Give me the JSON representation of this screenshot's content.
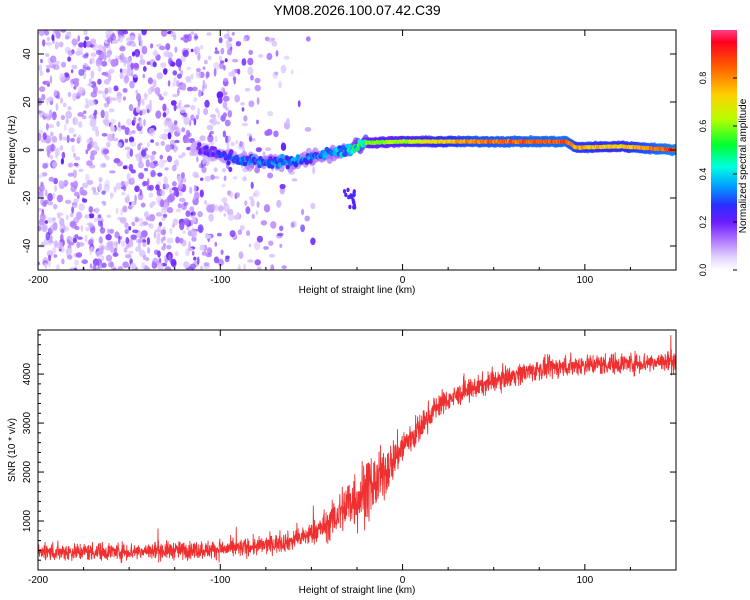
{
  "figure": {
    "title": "YM08.2026.100.07.42.C39"
  },
  "chart_data": [
    {
      "type": "heatmap",
      "title": "YM08.2026.100.07.42.C39",
      "xlabel": "Height of straight line (km)",
      "ylabel": "Frequency (Hz)",
      "xlim": [
        -200,
        150
      ],
      "ylim": [
        -50,
        50
      ],
      "xticks": [
        -200,
        -100,
        0,
        100
      ],
      "xtick_labels": [
        "-200",
        "-100",
        "0",
        "100"
      ],
      "yticks": [
        40,
        20,
        0,
        -20,
        -40
      ],
      "ytick_labels": [
        "40",
        "20",
        "0",
        "-20",
        "-40"
      ],
      "colorbar": {
        "label": "Normalized spectral amplitude",
        "range": [
          0,
          1
        ],
        "ticks": [
          0.0,
          0.2,
          0.4,
          0.6,
          0.8
        ],
        "tick_labels": [
          "0.0",
          "0.2",
          "0.4",
          "0.6",
          "0.8"
        ],
        "colors": [
          "#ffffff",
          "#d7c3ff",
          "#8a2be2",
          "#3b2dff",
          "#00e5ff",
          "#00ff40",
          "#b8ff00",
          "#ffd000",
          "#ff6a00",
          "#ff0030"
        ]
      },
      "features": {
        "noise_region_x": [
          -200,
          -45
        ],
        "noise_density_falloff_x": -110,
        "dominant_line": [
          {
            "x": -112,
            "freq": 0.5,
            "amplitude": 0.25
          },
          {
            "x": -95,
            "freq": -3,
            "amplitude": 0.3
          },
          {
            "x": -80,
            "freq": -5,
            "amplitude": 0.35
          },
          {
            "x": -60,
            "freq": -5,
            "amplitude": 0.35
          },
          {
            "x": -45,
            "freq": -2,
            "amplitude": 0.35
          },
          {
            "x": -30,
            "freq": 0,
            "amplitude": 0.45
          },
          {
            "x": -20,
            "freq": 3,
            "amplitude": 0.6
          },
          {
            "x": 0,
            "freq": 3.5,
            "amplitude": 0.65
          },
          {
            "x": 40,
            "freq": 3.5,
            "amplitude": 0.85
          },
          {
            "x": 90,
            "freq": 3.5,
            "amplitude": 0.9
          },
          {
            "x": 95,
            "freq": 1,
            "amplitude": 0.8
          },
          {
            "x": 120,
            "freq": 1.5,
            "amplitude": 0.75
          },
          {
            "x": 150,
            "freq": 0,
            "amplitude": 0.95
          }
        ]
      }
    },
    {
      "type": "line",
      "xlabel": "Height of straight line (km)",
      "ylabel": "SNR (10 * v/v)",
      "xlim": [
        -200,
        150
      ],
      "ylim": [
        0,
        4900
      ],
      "xticks": [
        -200,
        -100,
        0,
        100
      ],
      "xtick_labels": [
        "-200",
        "-100",
        "0",
        "100"
      ],
      "yticks": [
        1000,
        2000,
        3000,
        4000
      ],
      "ytick_labels": [
        "1000",
        "2000",
        "3000",
        "4000"
      ],
      "color": "#f03030",
      "series": [
        {
          "name": "SNR",
          "x": [
            -200,
            -150,
            -100,
            -80,
            -60,
            -50,
            -40,
            -30,
            -25,
            -20,
            -15,
            -10,
            -5,
            0,
            5,
            10,
            15,
            20,
            25,
            30,
            35,
            40,
            50,
            60,
            70,
            80,
            90,
            100,
            110,
            120,
            130,
            140,
            150
          ],
          "values": [
            370,
            380,
            420,
            480,
            600,
            740,
            960,
            1350,
            1480,
            1620,
            1760,
            1960,
            2260,
            2520,
            2720,
            2900,
            3180,
            3380,
            3470,
            3560,
            3650,
            3720,
            3860,
            3970,
            4060,
            4120,
            4160,
            4200,
            4200,
            4220,
            4230,
            4250,
            4260
          ],
          "noise_amplitude": [
            220,
            220,
            220,
            220,
            240,
            280,
            400,
            700,
            800,
            800,
            700,
            650,
            520,
            450,
            420,
            380,
            320,
            300,
            260,
            260,
            260,
            260,
            260,
            260,
            260,
            260,
            260,
            260,
            260,
            260,
            260,
            260,
            260
          ]
        }
      ]
    }
  ]
}
